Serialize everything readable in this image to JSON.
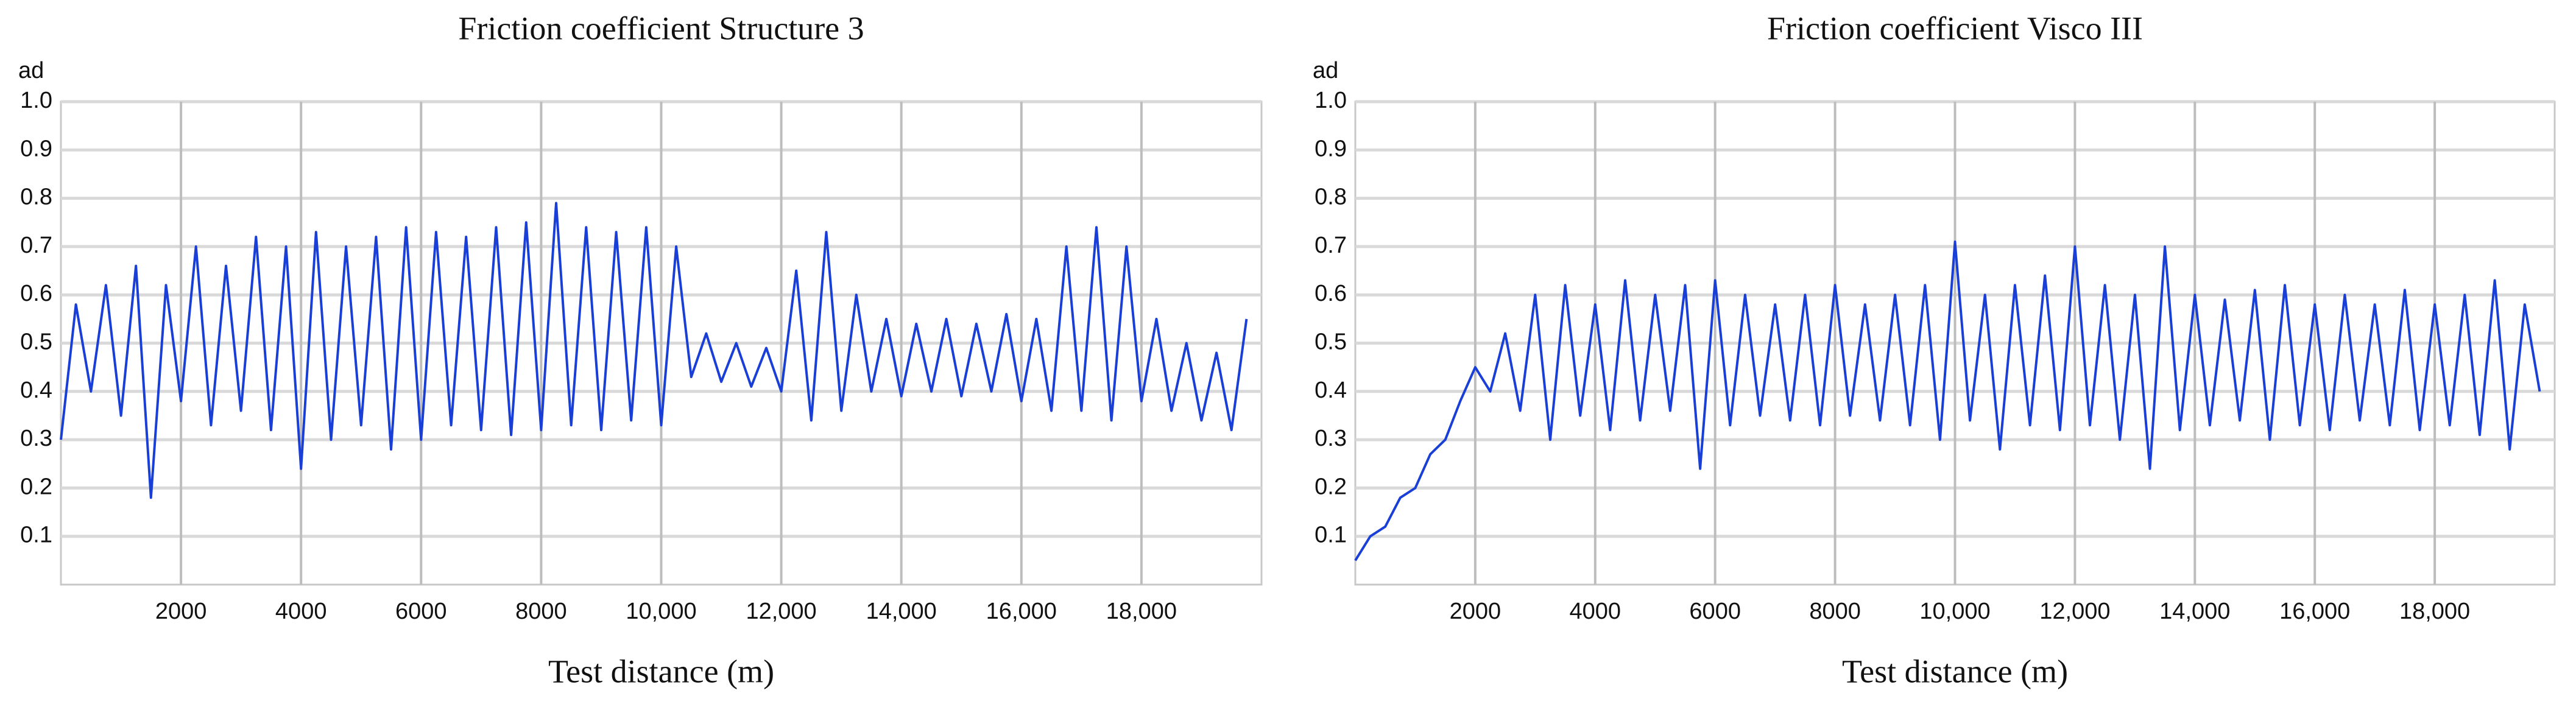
{
  "chart_data": [
    {
      "type": "line",
      "title": "Friction coefficient Structure 3",
      "y_label": "ad",
      "x_label": "Test distance (m)",
      "color": "#1a3fd6",
      "x": [
        0,
        250,
        500,
        750,
        1000,
        1250,
        1500,
        1750,
        2000,
        2250,
        2500,
        2750,
        3000,
        3250,
        3500,
        3750,
        4000,
        4250,
        4500,
        4750,
        5000,
        5250,
        5500,
        5750,
        6000,
        6250,
        6500,
        6750,
        7000,
        7250,
        7500,
        7750,
        8000,
        8250,
        8500,
        8750,
        9000,
        9250,
        9500,
        9750,
        10000,
        10250,
        10500,
        10750,
        11000,
        11250,
        11500,
        11750,
        12000,
        12250,
        12500,
        12750,
        13000,
        13250,
        13500,
        13750,
        14000,
        14250,
        14500,
        14750,
        15000,
        15250,
        15500,
        15750,
        16000,
        16250,
        16500,
        16750,
        17000,
        17250,
        17500,
        17750,
        18000,
        18250,
        18500,
        18750,
        19000,
        19250,
        19500,
        19750
      ],
      "values": [
        0.3,
        0.58,
        0.4,
        0.62,
        0.35,
        0.66,
        0.18,
        0.62,
        0.38,
        0.7,
        0.33,
        0.66,
        0.36,
        0.72,
        0.32,
        0.7,
        0.24,
        0.73,
        0.3,
        0.7,
        0.33,
        0.72,
        0.28,
        0.74,
        0.3,
        0.73,
        0.33,
        0.72,
        0.32,
        0.74,
        0.31,
        0.75,
        0.32,
        0.79,
        0.33,
        0.74,
        0.32,
        0.73,
        0.34,
        0.74,
        0.33,
        0.7,
        0.43,
        0.52,
        0.42,
        0.5,
        0.41,
        0.49,
        0.4,
        0.65,
        0.34,
        0.73,
        0.36,
        0.6,
        0.4,
        0.55,
        0.39,
        0.54,
        0.4,
        0.55,
        0.39,
        0.54,
        0.4,
        0.56,
        0.38,
        0.55,
        0.36,
        0.7,
        0.36,
        0.74,
        0.34,
        0.7,
        0.38,
        0.55,
        0.36,
        0.5,
        0.34,
        0.48,
        0.32,
        0.55
      ],
      "xlim": [
        0,
        20000
      ],
      "ylim": [
        0,
        1
      ],
      "xticks": [
        2000,
        4000,
        6000,
        8000,
        {
          "value": 10000,
          "label": "10,000"
        },
        {
          "value": 12000,
          "label": "12,000"
        },
        {
          "value": 14000,
          "label": "14,000"
        },
        {
          "value": 16000,
          "label": "16,000"
        },
        {
          "value": 18000,
          "label": "18,000"
        }
      ],
      "yticks": [
        0.1,
        0.2,
        0.3,
        0.4,
        0.5,
        0.6,
        0.7,
        0.8,
        0.9,
        {
          "value": 1,
          "label": "1.0"
        }
      ],
      "grid": true
    },
    {
      "type": "line",
      "title": "Friction coefficient  Visco III",
      "y_label": "ad",
      "x_label": "Test distance (m)",
      "color": "#1a3fd6",
      "x": [
        0,
        250,
        500,
        750,
        1000,
        1250,
        1500,
        1750,
        2000,
        2250,
        2500,
        2750,
        3000,
        3250,
        3500,
        3750,
        4000,
        4250,
        4500,
        4750,
        5000,
        5250,
        5500,
        5750,
        6000,
        6250,
        6500,
        6750,
        7000,
        7250,
        7500,
        7750,
        8000,
        8250,
        8500,
        8750,
        9000,
        9250,
        9500,
        9750,
        10000,
        10250,
        10500,
        10750,
        11000,
        11250,
        11500,
        11750,
        12000,
        12250,
        12500,
        12750,
        13000,
        13250,
        13500,
        13750,
        14000,
        14250,
        14500,
        14750,
        15000,
        15250,
        15500,
        15750,
        16000,
        16250,
        16500,
        16750,
        17000,
        17250,
        17500,
        17750,
        18000,
        18250,
        18500,
        18750,
        19000,
        19250,
        19500,
        19750
      ],
      "values": [
        0.05,
        0.1,
        0.12,
        0.18,
        0.2,
        0.27,
        0.3,
        0.38,
        0.45,
        0.4,
        0.52,
        0.36,
        0.6,
        0.3,
        0.62,
        0.35,
        0.58,
        0.32,
        0.63,
        0.34,
        0.6,
        0.36,
        0.62,
        0.24,
        0.63,
        0.33,
        0.6,
        0.35,
        0.58,
        0.34,
        0.6,
        0.33,
        0.62,
        0.35,
        0.58,
        0.34,
        0.6,
        0.33,
        0.62,
        0.3,
        0.71,
        0.34,
        0.6,
        0.28,
        0.62,
        0.33,
        0.64,
        0.32,
        0.7,
        0.33,
        0.62,
        0.3,
        0.6,
        0.24,
        0.7,
        0.32,
        0.6,
        0.33,
        0.59,
        0.34,
        0.61,
        0.3,
        0.62,
        0.33,
        0.58,
        0.32,
        0.6,
        0.34,
        0.58,
        0.33,
        0.61,
        0.32,
        0.58,
        0.33,
        0.6,
        0.31,
        0.63,
        0.28,
        0.58,
        0.4
      ],
      "xlim": [
        0,
        20000
      ],
      "ylim": [
        0,
        1
      ],
      "xticks": [
        2000,
        4000,
        6000,
        8000,
        {
          "value": 10000,
          "label": "10,000"
        },
        {
          "value": 12000,
          "label": "12,000"
        },
        {
          "value": 14000,
          "label": "14,000"
        },
        {
          "value": 16000,
          "label": "16,000"
        },
        {
          "value": 18000,
          "label": "18,000"
        }
      ],
      "yticks": [
        0.1,
        0.2,
        0.3,
        0.4,
        0.5,
        0.6,
        0.7,
        0.8,
        0.9,
        {
          "value": 1,
          "label": "1.0"
        }
      ],
      "grid": true
    }
  ]
}
